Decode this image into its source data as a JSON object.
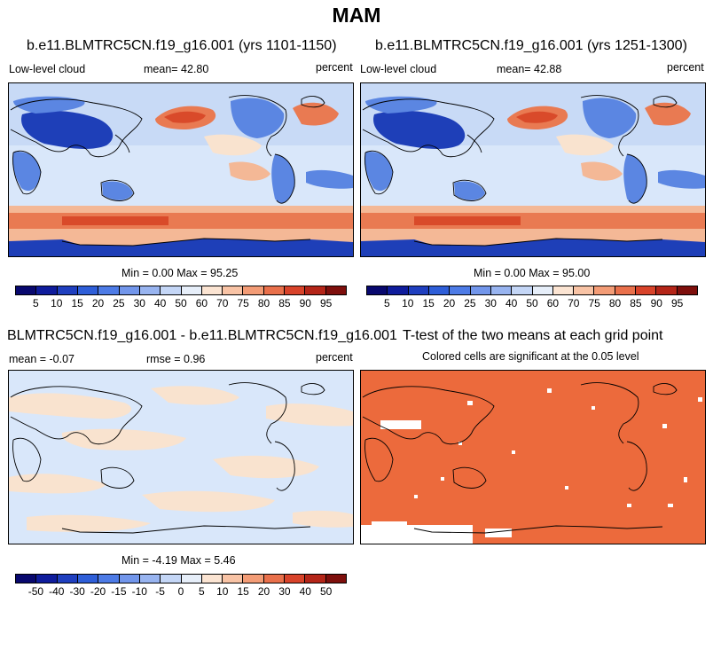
{
  "title": "MAM",
  "panels": [
    {
      "title": "b.e11.BLMTRC5CN.f19_g16.001 (yrs 1101-1150)",
      "left_label": "Low-level cloud",
      "center_label": "mean=  42.80",
      "right_label": "percent",
      "minmax": "Min =   0.00 Max =  95.25"
    },
    {
      "title": "b.e11.BLMTRC5CN.f19_g16.001 (yrs 1251-1300)",
      "left_label": "Low-level cloud",
      "center_label": "mean=  42.88",
      "right_label": "percent",
      "minmax": "Min =   0.00 Max =  95.00"
    },
    {
      "title": "BLMTRC5CN.f19_g16.001 - b.e11.BLMTRC5CN.f19_g16.001",
      "left_label": "mean =  -0.07",
      "center_label": "rmse =   0.96",
      "right_label": "percent",
      "minmax": "Min =  -4.19 Max =   5.46"
    },
    {
      "title": "T-test of the two means at each grid point",
      "subtitle": "Colored cells are significant at the 0.05 level"
    }
  ],
  "colorbar_levels": [
    "5",
    "10",
    "15",
    "20",
    "25",
    "30",
    "40",
    "50",
    "60",
    "70",
    "75",
    "80",
    "85",
    "90",
    "95"
  ],
  "diff_colorbar_levels": [
    "-50",
    "-40",
    "-30",
    "-20",
    "-15",
    "-10",
    "-5",
    "0",
    "5",
    "10",
    "15",
    "20",
    "30",
    "40",
    "50"
  ],
  "colorbar_colors": [
    "#08086e",
    "#0f1c9c",
    "#1f3fbf",
    "#2e5ed8",
    "#4d7be6",
    "#7296eb",
    "#98b4f0",
    "#c4d6f6",
    "#e6eef9",
    "#fbe4d2",
    "#f8c3a5",
    "#f39c76",
    "#e9704b",
    "#d8432a",
    "#b42518",
    "#7e0f0c"
  ],
  "ttest_color": "#ec6a3c",
  "map_colors": {
    "deep_blue": "#1e3fb8",
    "mid_blue": "#5b86e2",
    "light_blue": "#c8daf6",
    "pale_blue": "#d9e7fa",
    "cream": "#f9e3cf",
    "peach": "#f4b896",
    "orange": "#e97a52",
    "red_orange": "#d94a2a"
  }
}
